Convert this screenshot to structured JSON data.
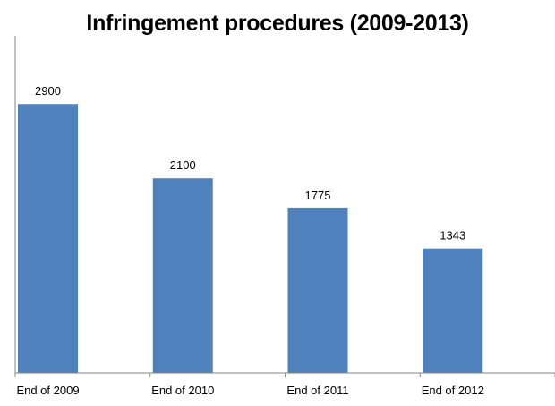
{
  "chart_data": {
    "type": "bar",
    "title": "Infringement procedures (2009-2013)",
    "categories": [
      "End of 2009",
      "End of 2010",
      "End of 2011",
      "End of 2012"
    ],
    "values": [
      2900,
      2100,
      1775,
      1343
    ],
    "value_labels": [
      "2900",
      "2100",
      "1775",
      "1343"
    ],
    "xlabel": "",
    "ylabel": "",
    "ylim": [
      0,
      3500
    ],
    "grid": false,
    "legend": "none",
    "bar_color": "#4f81bd",
    "axis_color": "#868686"
  }
}
